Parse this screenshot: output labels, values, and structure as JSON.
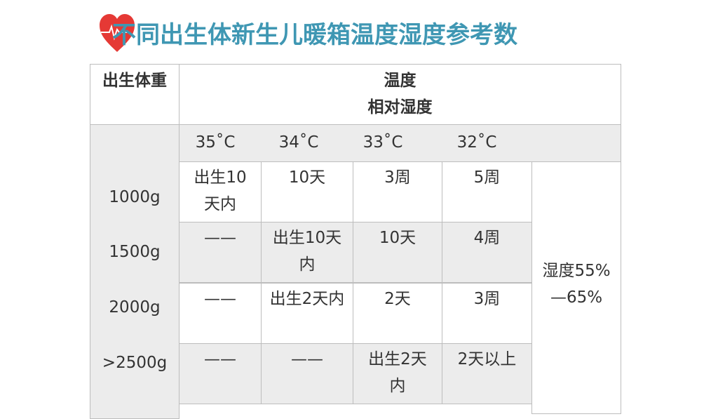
{
  "title": "不同出生体新生儿暖箱温度湿度参考数",
  "icons": {
    "logo": "heart-ecg-icon"
  },
  "colors": {
    "title": "#3f97b3",
    "heart": "#e53935",
    "header_bg": "#ececec"
  },
  "table": {
    "header_weight": "出生体重",
    "header_temp": "温度",
    "header_humidity": "相对湿度",
    "temps": [
      "35˚C",
      "34˚C",
      "33˚C",
      "32˚C"
    ],
    "rows": [
      {
        "weight": "1000g",
        "cells": [
          "出生10天内",
          "10天",
          "3周",
          "5周"
        ]
      },
      {
        "weight": "1500g",
        "cells": [
          "——",
          "出生10天内",
          "10天",
          "4周"
        ]
      },
      {
        "weight": "2000g",
        "cells": [
          "——",
          "出生2天内",
          "2天",
          "3周"
        ]
      },
      {
        "weight": ">2500g",
        "cells": [
          "——",
          "——",
          "出生2天内",
          "2天以上"
        ]
      }
    ],
    "humidity": "湿度55%—65%"
  }
}
